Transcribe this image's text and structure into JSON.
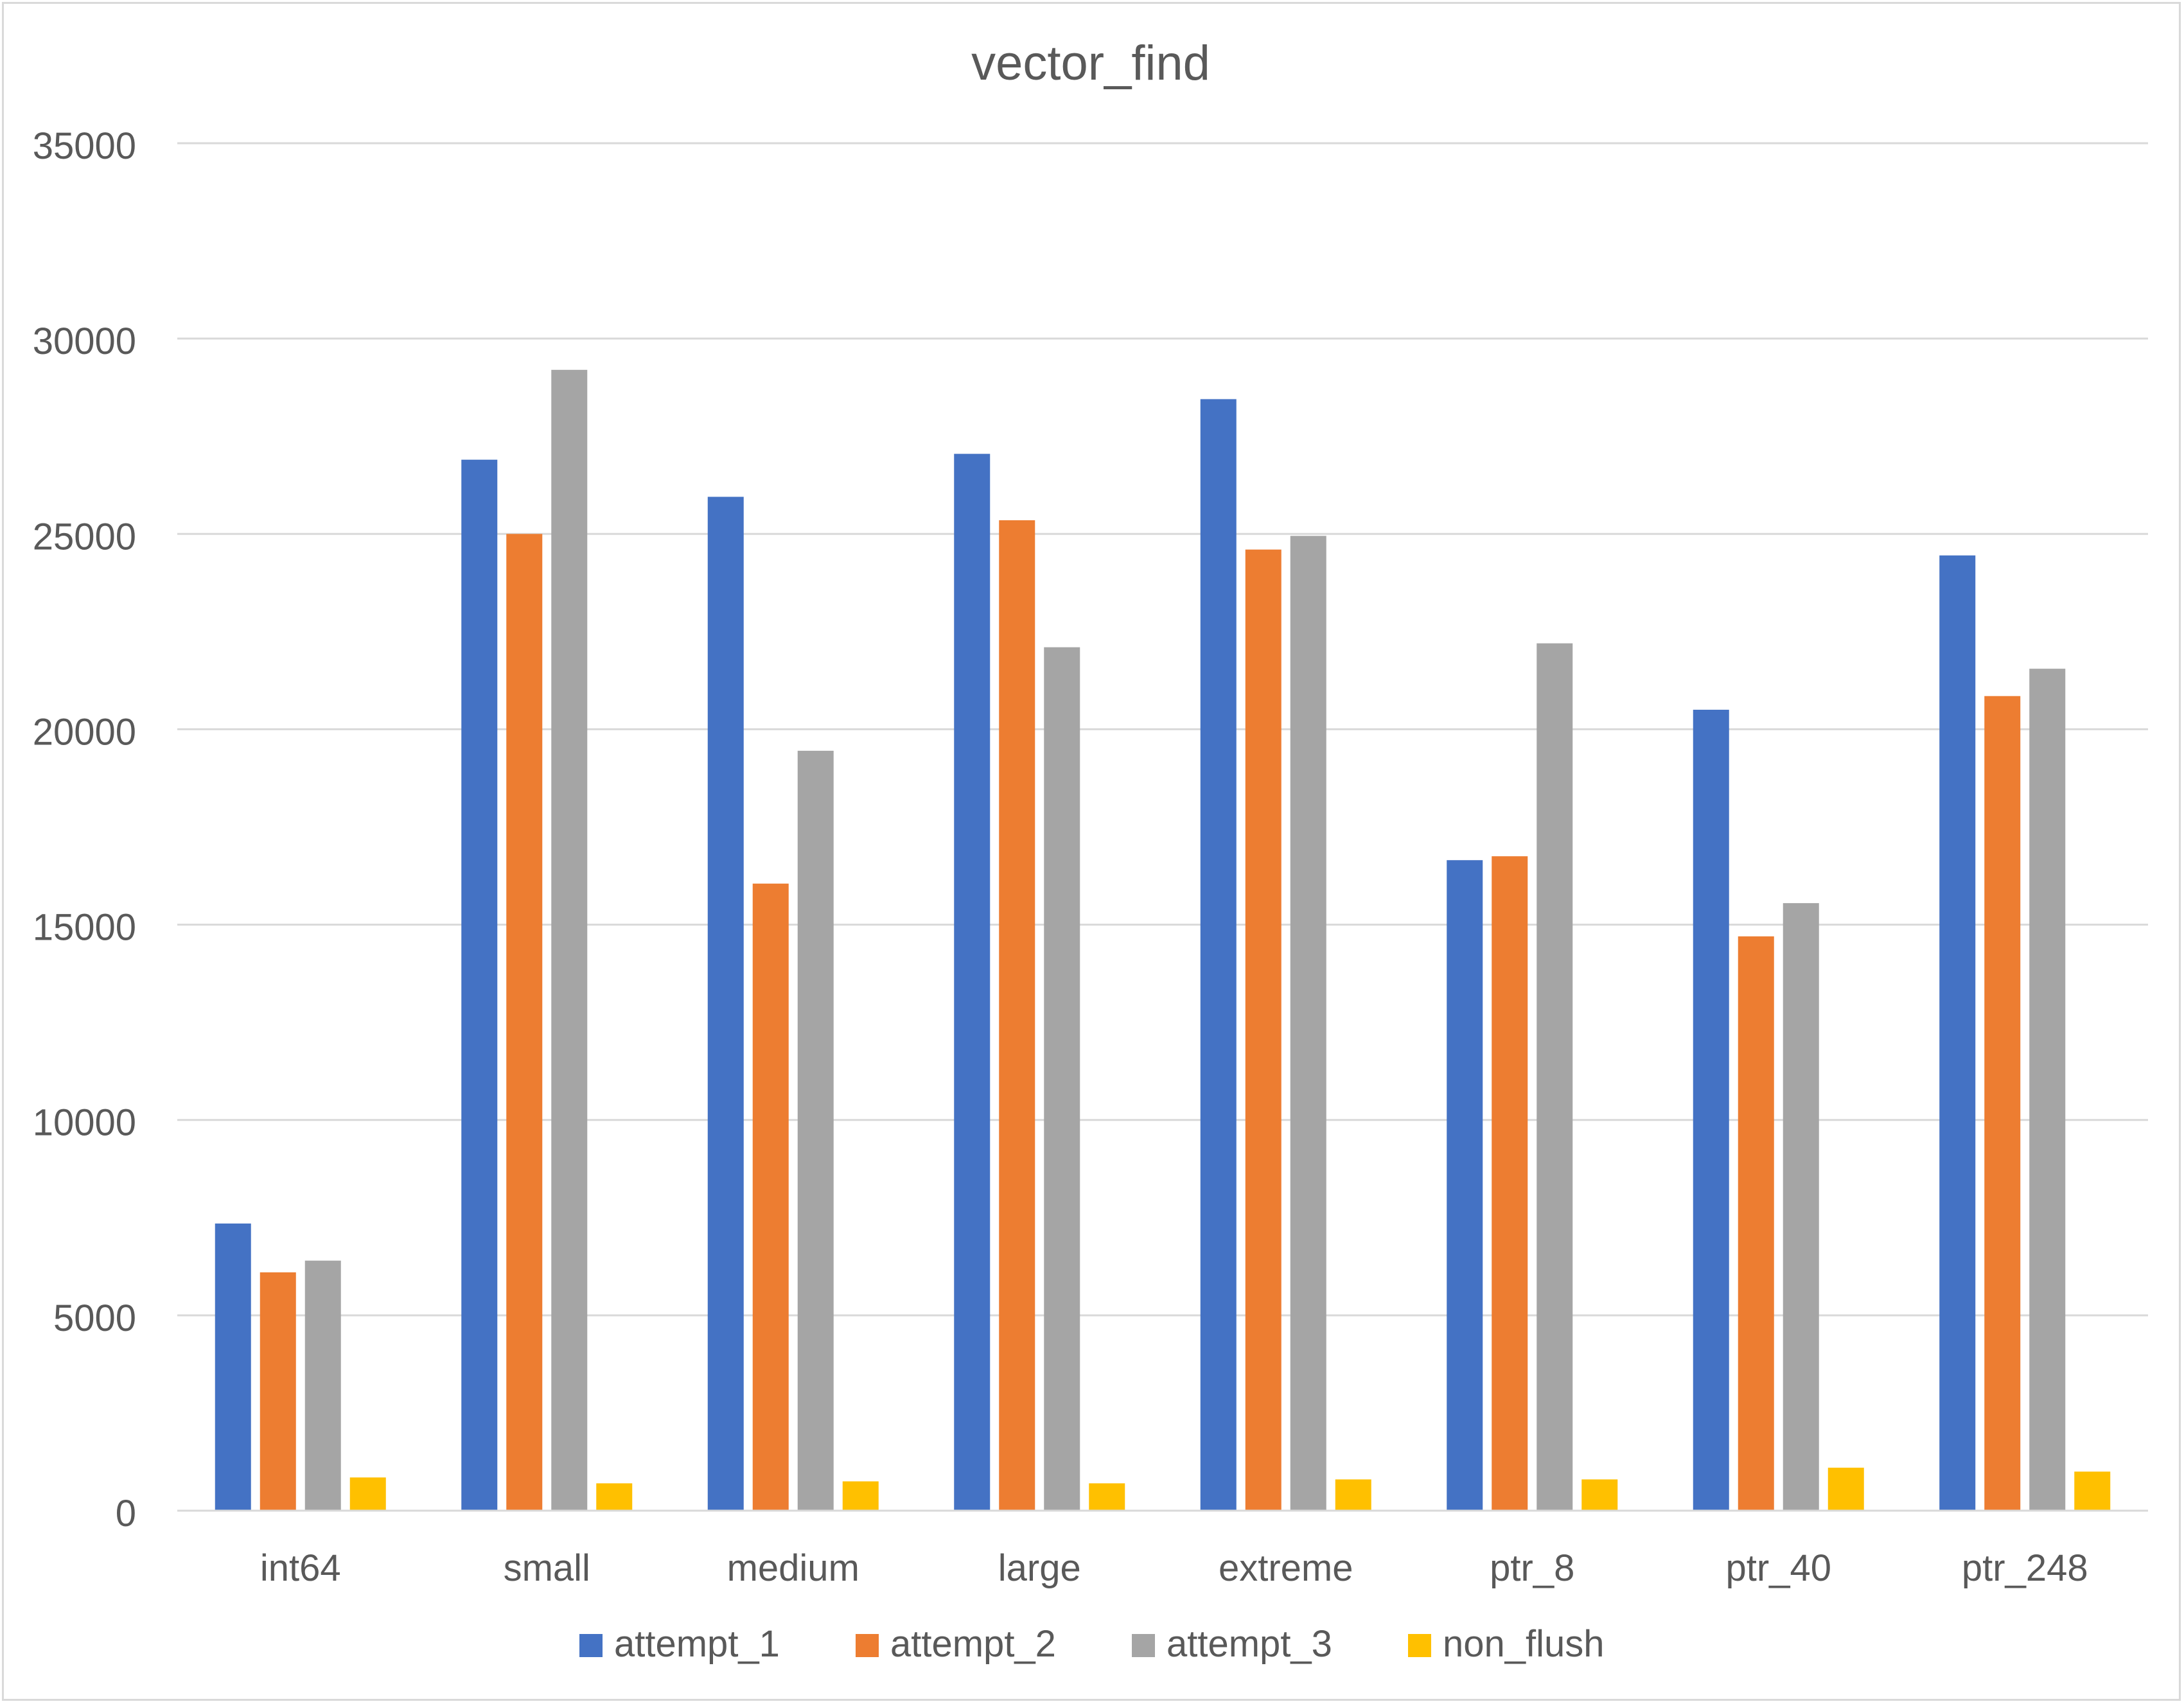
{
  "chart_data": {
    "type": "bar",
    "title": "vector_find",
    "xlabel": "",
    "ylabel": "",
    "ylim": [
      0,
      35000
    ],
    "yticks": [
      0,
      5000,
      10000,
      15000,
      20000,
      25000,
      30000,
      35000
    ],
    "grid": true,
    "legend_position": "bottom",
    "categories": [
      "int64",
      "small",
      "medium",
      "large",
      "extreme",
      "ptr_8",
      "ptr_40",
      "ptr_248"
    ],
    "series": [
      {
        "name": "attempt_1",
        "color": "#4472C4",
        "values": [
          7350,
          26900,
          25950,
          27050,
          28450,
          16650,
          20500,
          24450
        ]
      },
      {
        "name": "attempt_2",
        "color": "#ED7D31",
        "values": [
          6100,
          25000,
          16050,
          25350,
          24600,
          16750,
          14700,
          20850
        ]
      },
      {
        "name": "attempt_3",
        "color": "#A5A5A5",
        "values": [
          6400,
          29200,
          19450,
          22100,
          24950,
          22200,
          15550,
          21550
        ]
      },
      {
        "name": "non_flush",
        "color": "#FFC000",
        "values": [
          850,
          700,
          750,
          700,
          800,
          800,
          1100,
          1000
        ]
      }
    ]
  }
}
